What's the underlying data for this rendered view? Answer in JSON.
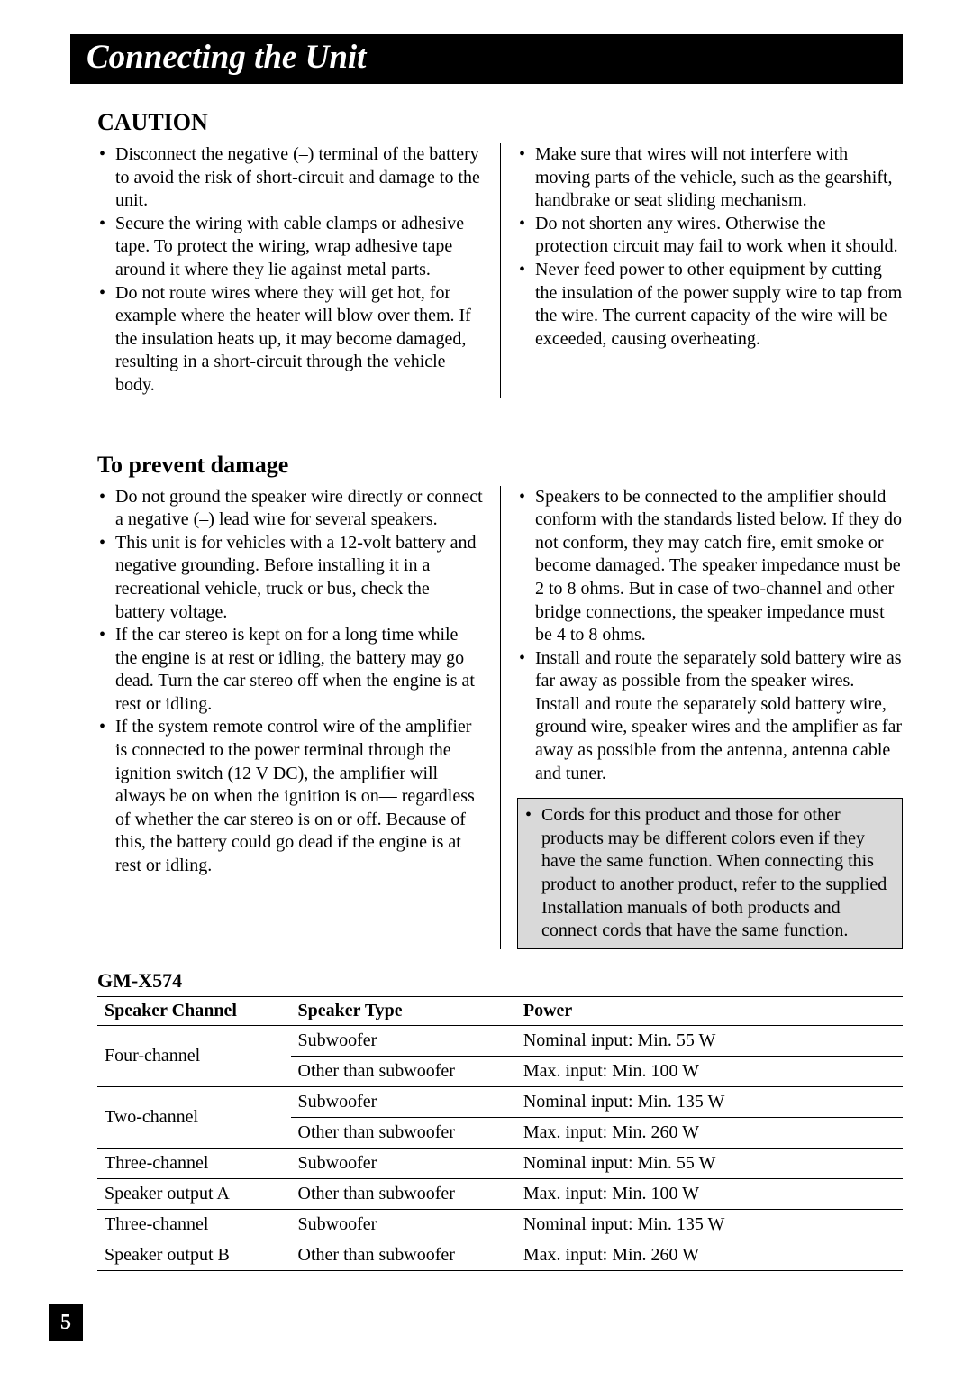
{
  "title": "Connecting the Unit",
  "sections": {
    "caution": {
      "heading": "CAUTION",
      "left": [
        "Disconnect the negative (–) terminal of the battery to avoid the risk of short-circuit and damage to the unit.",
        "Secure the wiring with cable clamps or adhesive tape. To protect the wiring, wrap adhesive tape around it where they lie against metal parts.",
        "Do not route wires where they will get hot, for example where the heater will blow over them. If the insulation heats up, it may become damaged, resulting in a short-circuit through the vehicle body."
      ],
      "right": [
        "Make sure that wires will not interfere with moving parts of the vehicle, such as the gearshift, handbrake or seat sliding mechanism.",
        "Do not shorten any wires. Otherwise the protection circuit may fail to work when it should.",
        "Never feed power to other equipment by cutting the insulation of the power supply wire to tap from the wire. The current capacity of the wire will be exceeded, causing overheating."
      ]
    },
    "damage": {
      "heading": "To prevent damage",
      "left": [
        "Do not ground the speaker wire directly or connect a negative (–) lead wire for several speakers.",
        "This unit is for vehicles with a 12-volt battery and negative grounding. Before installing it in a recreational vehicle, truck or bus, check the battery voltage.",
        "If the car stereo is kept on for a long time while the engine is at rest or idling, the battery may go dead. Turn the car stereo off when the engine is at rest or idling.",
        "If the system remote control wire of the amplifier is connected to the power terminal through the ignition switch (12 V DC), the amplifier will always be on when the ignition is on— regardless of whether the car stereo is on or off. Because of this, the battery could go dead if the engine is at rest or idling."
      ],
      "right": [
        "Speakers to be connected to the amplifier should conform with the standards listed below. If they do not conform, they may catch fire, emit smoke or become damaged. The speaker impedance must be 2 to 8 ohms. But in case of two-channel and other bridge connections, the speaker impedance must be 4 to 8 ohms.",
        "Install and route the separately sold battery wire as far away as possible from the speaker wires. Install and route the separately sold battery wire, ground wire, speaker wires and the amplifier as far away as possible from the antenna, antenna cable and tuner."
      ],
      "note": "Cords for this product and those for other products may be different colors even if they have the same function. When connecting this product to another product, refer to the supplied Installation manuals of both products and connect cords that have the same function."
    }
  },
  "table": {
    "model": "GM-X574",
    "headers": [
      "Speaker Channel",
      "Speaker Type",
      "Power"
    ],
    "rows": [
      {
        "ch": "Four-channel",
        "rows": [
          {
            "type": "Subwoofer",
            "power": "Nominal input: Min. 55 W"
          },
          {
            "type": "Other than subwoofer",
            "power": "Max. input: Min. 100 W"
          }
        ]
      },
      {
        "ch": "Two-channel",
        "rows": [
          {
            "type": "Subwoofer",
            "power": "Nominal input: Min. 135 W"
          },
          {
            "type": "Other than subwoofer",
            "power": "Max. input: Min. 260 W"
          }
        ]
      },
      {
        "ch": "Three-channel",
        "ch2": "Speaker output A",
        "rows": [
          {
            "type": "Subwoofer",
            "power": "Nominal input: Min. 55 W"
          },
          {
            "type": "Other than subwoofer",
            "power": "Max. input: Min. 100 W"
          }
        ]
      },
      {
        "ch": "Three-channel",
        "ch2": "Speaker output B",
        "rows": [
          {
            "type": "Subwoofer",
            "power": "Nominal input: Min. 135 W"
          },
          {
            "type": "Other than subwoofer",
            "power": "Max. input: Min. 260 W"
          }
        ]
      }
    ]
  },
  "pageNumber": "5"
}
